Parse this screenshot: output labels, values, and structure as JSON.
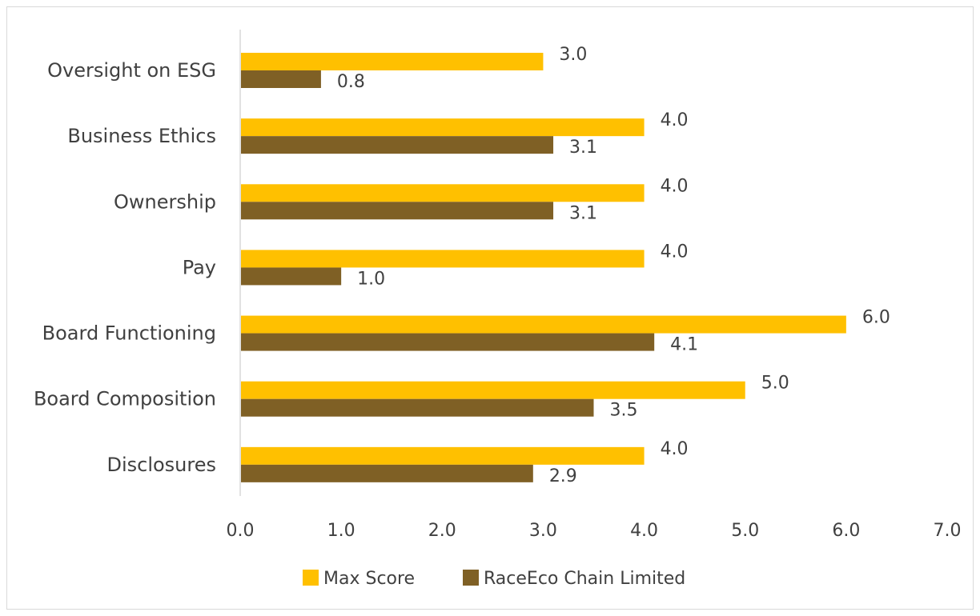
{
  "chart_data": {
    "type": "bar",
    "orientation": "horizontal",
    "categories": [
      "Oversight on ESG",
      "Business Ethics",
      "Ownership",
      "Pay",
      "Board Functioning",
      "Board Composition",
      "Disclosures"
    ],
    "series": [
      {
        "name": "Max Score",
        "color": "#FFC000",
        "values": [
          3.0,
          4.0,
          4.0,
          4.0,
          6.0,
          5.0,
          4.0
        ],
        "labels": [
          "3.0",
          "4.0",
          "4.0",
          "4.0",
          "6.0",
          "5.0",
          "4.0"
        ]
      },
      {
        "name": "RaceEco Chain Limited",
        "color": "#7F6025",
        "values": [
          0.8,
          3.1,
          3.1,
          1.0,
          4.1,
          3.5,
          2.9
        ],
        "labels": [
          "0.8",
          "3.1",
          "3.1",
          "1.0",
          "4.1",
          "3.5",
          "2.9"
        ]
      }
    ],
    "xlim": [
      0,
      7
    ],
    "xticks": [
      "0.0",
      "1.0",
      "2.0",
      "3.0",
      "4.0",
      "5.0",
      "6.0",
      "7.0"
    ],
    "grid": false,
    "legend_position": "bottom"
  }
}
